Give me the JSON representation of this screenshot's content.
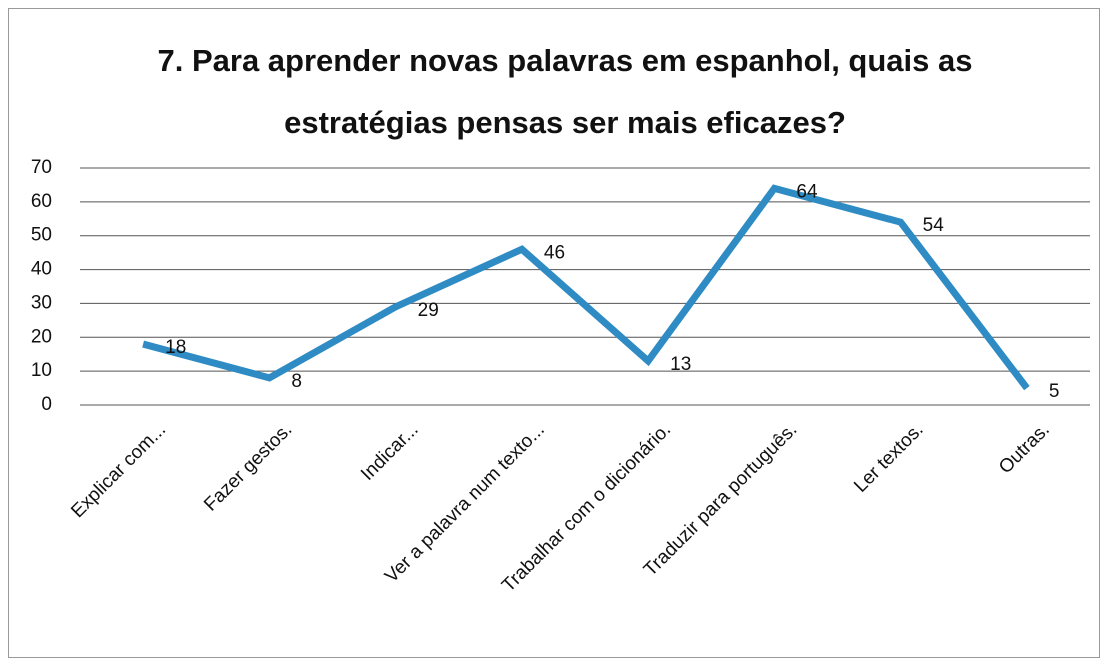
{
  "chart_data": {
    "type": "line",
    "title": "7. Para aprender novas palavras em espanhol, quais as estratégias pensas ser mais eficazes?",
    "categories": [
      "Explicar com...",
      "Fazer gestos.",
      "Indicar...",
      "Ver a palavra num texto...",
      "Trabalhar com o dicionário.",
      "Traduzir para português.",
      "Ler textos.",
      "Outras."
    ],
    "series": [
      {
        "name": null,
        "color": "#2e8bc3",
        "values": [
          18,
          8,
          29,
          46,
          13,
          64,
          54,
          5
        ]
      }
    ],
    "ylim": [
      0,
      70
    ],
    "yticks": [
      0,
      10,
      20,
      30,
      40,
      50,
      60,
      70
    ],
    "grid": true
  }
}
